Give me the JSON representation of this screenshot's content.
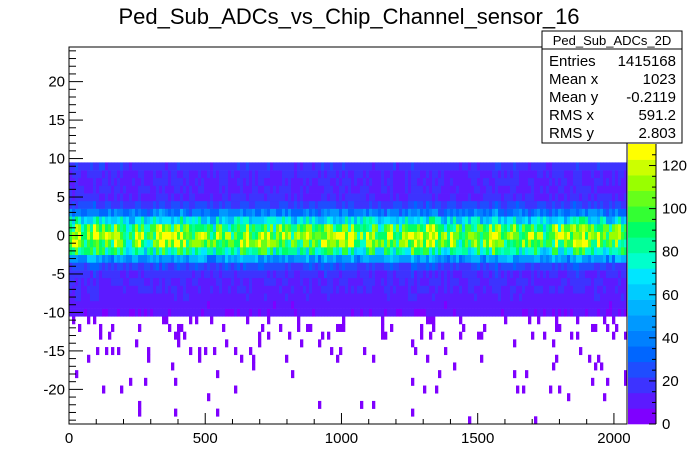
{
  "chart_data": {
    "type": "heatmap",
    "title": "Ped_Sub_ADCs_vs_Chip_Channel_sensor_16",
    "xlabel": "",
    "ylabel": "",
    "xlim": [
      0,
      2048
    ],
    "ylim": [
      -24.5,
      24.5
    ],
    "x_ticks": [
      0,
      500,
      1000,
      1500,
      2000
    ],
    "y_ticks": [
      -20,
      -15,
      -10,
      -5,
      0,
      5,
      10,
      15,
      20
    ],
    "z_range": [
      0,
      130
    ],
    "z_ticks": [
      0,
      20,
      40,
      60,
      80,
      100,
      120
    ],
    "palette": [
      "#7f00ff",
      "#5c1aff",
      "#3d33ff",
      "#1f4dff",
      "#0066ff",
      "#0080ff",
      "#0099ff",
      "#00b3ff",
      "#00ccff",
      "#00e6ff",
      "#00ffcc",
      "#00ff99",
      "#00ff66",
      "#33ff33",
      "#66ff1a",
      "#99ff00",
      "#ccff00",
      "#ffff00"
    ],
    "y_profile": [
      {
        "y": 9,
        "counts": 18
      },
      {
        "y": 8,
        "counts": 14
      },
      {
        "y": 7,
        "counts": 14
      },
      {
        "y": 6,
        "counts": 14
      },
      {
        "y": 5,
        "counts": 15
      },
      {
        "y": 4,
        "counts": 22
      },
      {
        "y": 3,
        "counts": 38
      },
      {
        "y": 2,
        "counts": 68
      },
      {
        "y": 1,
        "counts": 95
      },
      {
        "y": 0,
        "counts": 110
      },
      {
        "y": -1,
        "counts": 102
      },
      {
        "y": -2,
        "counts": 80
      },
      {
        "y": -3,
        "counts": 48
      },
      {
        "y": -4,
        "counts": 24
      },
      {
        "y": -5,
        "counts": 16
      },
      {
        "y": -6,
        "counts": 14
      },
      {
        "y": -7,
        "counts": 14
      },
      {
        "y": -8,
        "counts": 12
      },
      {
        "y": -9,
        "counts": 10
      },
      {
        "y": -10,
        "counts": 8
      }
    ],
    "stats": {
      "name": "Ped_Sub_ADCs_2D",
      "entries_label": "Entries",
      "entries": "1415168",
      "mean_x_label": "Mean x",
      "mean_x": "1023",
      "mean_y_label": "Mean y",
      "mean_y": "-0.2119",
      "rms_x_label": "RMS x",
      "rms_x": "591.2",
      "rms_y_label": "RMS y",
      "rms_y": "2.803"
    }
  }
}
